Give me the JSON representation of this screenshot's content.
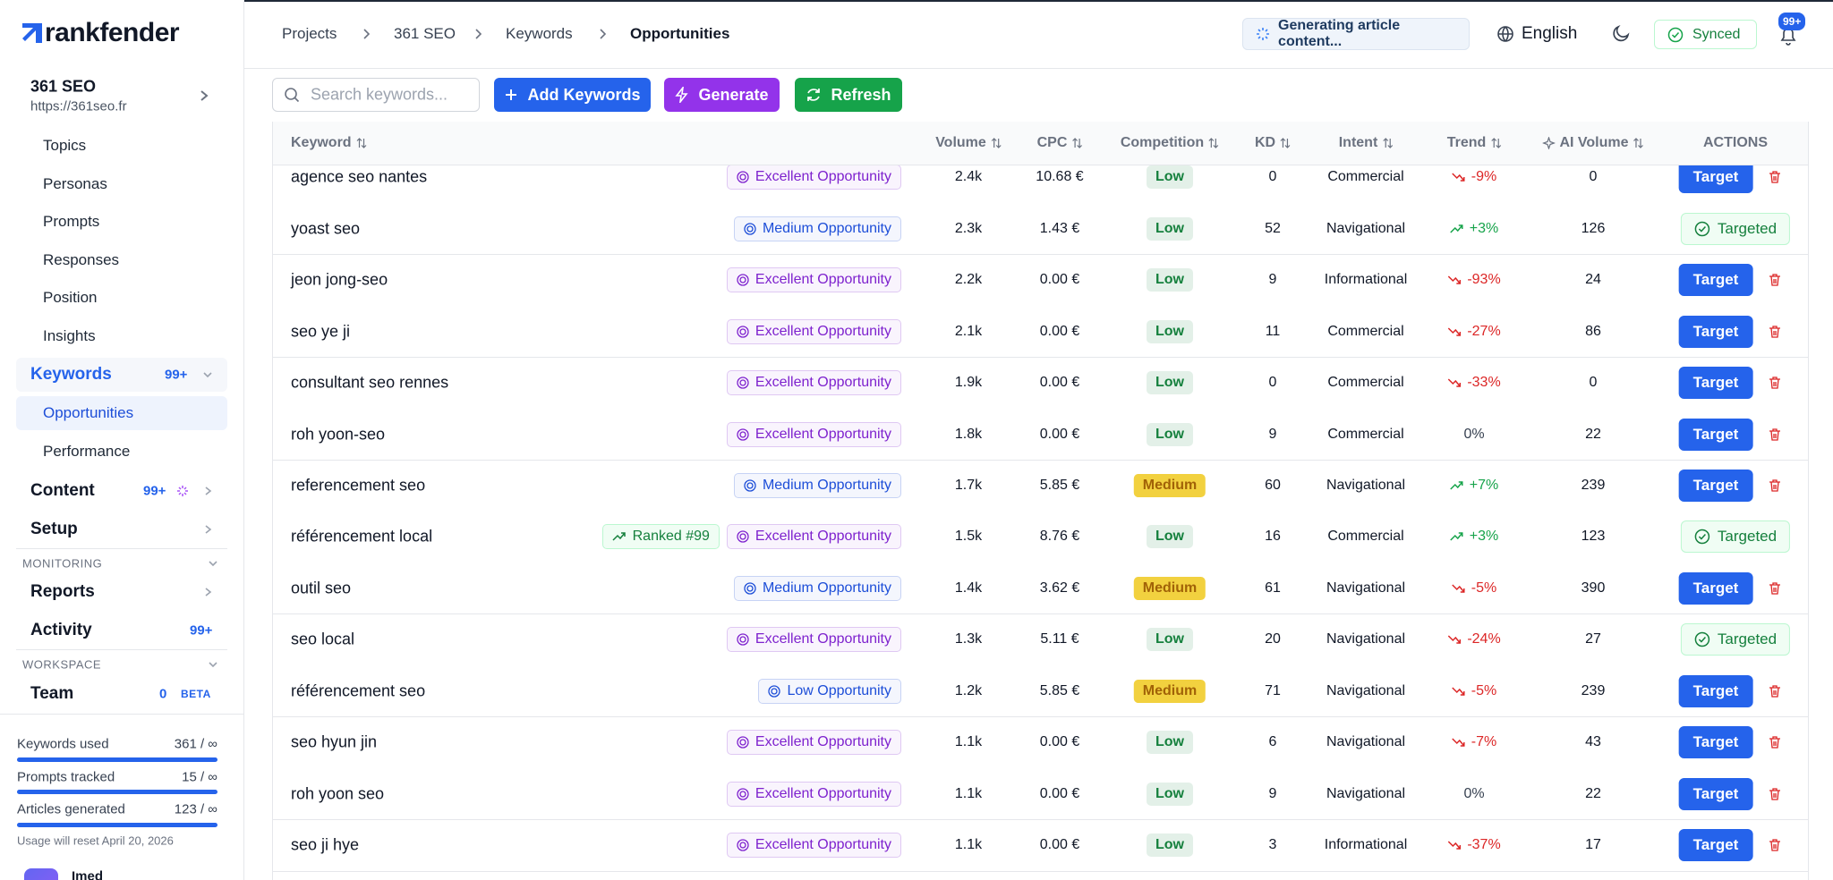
{
  "brand": "rankfender",
  "breadcrumb": [
    "Projects",
    "361 SEO",
    "Keywords",
    "Opportunities"
  ],
  "status": "Generating article content...",
  "language": "English",
  "synced": "Synced",
  "notifications": "99+",
  "project": {
    "name": "361 SEO",
    "url": "https://361seo.fr"
  },
  "sidebar": {
    "topics": "Topics",
    "personas": "Personas",
    "prompts": "Prompts",
    "responses": "Responses",
    "position": "Position",
    "insights": "Insights",
    "keywords": {
      "label": "Keywords",
      "badge": "99+"
    },
    "opportunities": "Opportunities",
    "performance": "Performance",
    "content": {
      "label": "Content",
      "badge": "99+"
    },
    "setup": "Setup",
    "monitoring": "MONITORING",
    "reports": "Reports",
    "activity": {
      "label": "Activity",
      "badge": "99+"
    },
    "workspace": "WORKSPACE",
    "team": {
      "label": "Team",
      "badge": "0",
      "tag": "BETA"
    }
  },
  "usage": [
    {
      "label": "Keywords used",
      "value": "361 / ∞"
    },
    {
      "label": "Prompts tracked",
      "value": "15 / ∞"
    },
    {
      "label": "Articles generated",
      "value": "123 / ∞"
    }
  ],
  "reset_note": "Usage will reset April 20, 2026",
  "user": "Imed",
  "toolbar": {
    "search": "Search keywords...",
    "add": "Add Keywords",
    "generate": "Generate",
    "refresh": "Refresh"
  },
  "table": {
    "columns": [
      "Keyword",
      "Volume",
      "CPC",
      "Competition",
      "KD",
      "Intent",
      "Trend",
      "AI Volume",
      "ACTIONS"
    ],
    "rows": [
      {
        "keyword": "agence seo nantes",
        "opportunity": {
          "label": "Excellent Opportunity",
          "color": "#7e22ce"
        },
        "volume": "2.4k",
        "cpc": "10.68 €",
        "competition": {
          "label": "Low",
          "color": "#15803d"
        },
        "kd": "0",
        "intent": "Commercial",
        "trend": {
          "label": "-9%",
          "color": "#dc2626"
        },
        "ai_volume": "0",
        "action": {
          "label": "Target",
          "color": "#2563eb"
        }
      },
      {
        "keyword": "yoast seo",
        "opportunity": {
          "label": "Medium Opportunity",
          "color": "#1d4ed8"
        },
        "volume": "2.3k",
        "cpc": "1.43 €",
        "competition": {
          "label": "Low",
          "color": "#15803d"
        },
        "kd": "52",
        "intent": "Navigational",
        "trend": {
          "label": "+3%",
          "color": "#16a34a"
        },
        "ai_volume": "126",
        "action": {
          "label": "Targeted",
          "color": "#15803d"
        }
      },
      {
        "keyword": "jeon jong-seo",
        "opportunity": {
          "label": "Excellent Opportunity",
          "color": "#7e22ce"
        },
        "volume": "2.2k",
        "cpc": "0.00 €",
        "competition": {
          "label": "Low",
          "color": "#15803d"
        },
        "kd": "9",
        "intent": "Informational",
        "trend": {
          "label": "-93%",
          "color": "#dc2626"
        },
        "ai_volume": "24",
        "action": {
          "label": "Target",
          "color": "#2563eb"
        }
      },
      {
        "keyword": "seo ye ji",
        "opportunity": {
          "label": "Excellent Opportunity",
          "color": "#7e22ce"
        },
        "volume": "2.1k",
        "cpc": "0.00 €",
        "competition": {
          "label": "Low",
          "color": "#15803d"
        },
        "kd": "11",
        "intent": "Commercial",
        "trend": {
          "label": "-27%",
          "color": "#dc2626"
        },
        "ai_volume": "86",
        "action": {
          "label": "Target",
          "color": "#2563eb"
        }
      },
      {
        "keyword": "consultant seo rennes",
        "opportunity": {
          "label": "Excellent Opportunity",
          "color": "#7e22ce"
        },
        "volume": "1.9k",
        "cpc": "0.00 €",
        "competition": {
          "label": "Low",
          "color": "#15803d"
        },
        "kd": "0",
        "intent": "Commercial",
        "trend": {
          "label": "-33%",
          "color": "#dc2626"
        },
        "ai_volume": "0",
        "action": {
          "label": "Target",
          "color": "#2563eb"
        }
      },
      {
        "keyword": "roh yoon-seo",
        "opportunity": {
          "label": "Excellent Opportunity",
          "color": "#7e22ce"
        },
        "volume": "1.8k",
        "cpc": "0.00 €",
        "competition": {
          "label": "Low",
          "color": "#15803d"
        },
        "kd": "9",
        "intent": "Commercial",
        "trend": {
          "label": "0%",
          "color": "#374151"
        },
        "ai_volume": "22",
        "action": {
          "label": "Target",
          "color": "#2563eb"
        }
      },
      {
        "keyword": "referencement seo",
        "opportunity": {
          "label": "Medium Opportunity",
          "color": "#1d4ed8"
        },
        "volume": "1.7k",
        "cpc": "5.85 €",
        "competition": {
          "label": "Medium",
          "color": "#a16207"
        },
        "kd": "60",
        "intent": "Navigational",
        "trend": {
          "label": "+7%",
          "color": "#16a34a"
        },
        "ai_volume": "239",
        "action": {
          "label": "Target",
          "color": "#2563eb"
        }
      },
      {
        "keyword": "référencement local",
        "rank": "Ranked #99",
        "opportunity": {
          "label": "Excellent Opportunity",
          "color": "#7e22ce"
        },
        "volume": "1.5k",
        "cpc": "8.76 €",
        "competition": {
          "label": "Low",
          "color": "#15803d"
        },
        "kd": "16",
        "intent": "Commercial",
        "trend": {
          "label": "+3%",
          "color": "#16a34a"
        },
        "ai_volume": "123",
        "action": {
          "label": "Targeted",
          "color": "#15803d"
        }
      },
      {
        "keyword": "outil seo",
        "opportunity": {
          "label": "Medium Opportunity",
          "color": "#1d4ed8"
        },
        "volume": "1.4k",
        "cpc": "3.62 €",
        "competition": {
          "label": "Medium",
          "color": "#a16207"
        },
        "kd": "61",
        "intent": "Navigational",
        "trend": {
          "label": "-5%",
          "color": "#dc2626"
        },
        "ai_volume": "390",
        "action": {
          "label": "Target",
          "color": "#2563eb"
        }
      },
      {
        "keyword": "seo local",
        "opportunity": {
          "label": "Excellent Opportunity",
          "color": "#7e22ce"
        },
        "volume": "1.3k",
        "cpc": "5.11 €",
        "competition": {
          "label": "Low",
          "color": "#15803d"
        },
        "kd": "20",
        "intent": "Navigational",
        "trend": {
          "label": "-24%",
          "color": "#dc2626"
        },
        "ai_volume": "27",
        "action": {
          "label": "Targeted",
          "color": "#15803d"
        }
      },
      {
        "keyword": "référencement seo",
        "opportunity": {
          "label": "Low Opportunity",
          "color": "#1d4ed8"
        },
        "volume": "1.2k",
        "cpc": "5.85 €",
        "competition": {
          "label": "Medium",
          "color": "#a16207"
        },
        "kd": "71",
        "intent": "Navigational",
        "trend": {
          "label": "-5%",
          "color": "#dc2626"
        },
        "ai_volume": "239",
        "action": {
          "label": "Target",
          "color": "#2563eb"
        }
      },
      {
        "keyword": "seo hyun jin",
        "opportunity": {
          "label": "Excellent Opportunity",
          "color": "#7e22ce"
        },
        "volume": "1.1k",
        "cpc": "0.00 €",
        "competition": {
          "label": "Low",
          "color": "#15803d"
        },
        "kd": "6",
        "intent": "Navigational",
        "trend": {
          "label": "-7%",
          "color": "#dc2626"
        },
        "ai_volume": "43",
        "action": {
          "label": "Target",
          "color": "#2563eb"
        }
      },
      {
        "keyword": "roh yoon seo",
        "opportunity": {
          "label": "Excellent Opportunity",
          "color": "#7e22ce"
        },
        "volume": "1.1k",
        "cpc": "0.00 €",
        "competition": {
          "label": "Low",
          "color": "#15803d"
        },
        "kd": "9",
        "intent": "Navigational",
        "trend": {
          "label": "0%",
          "color": "#374151"
        },
        "ai_volume": "22",
        "action": {
          "label": "Target",
          "color": "#2563eb"
        }
      },
      {
        "keyword": "seo ji hye",
        "opportunity": {
          "label": "Excellent Opportunity",
          "color": "#7e22ce"
        },
        "volume": "1.1k",
        "cpc": "0.00 €",
        "competition": {
          "label": "Low",
          "color": "#15803d"
        },
        "kd": "3",
        "intent": "Informational",
        "trend": {
          "label": "-37%",
          "color": "#dc2626"
        },
        "ai_volume": "17",
        "action": {
          "label": "Target",
          "color": "#2563eb"
        }
      }
    ]
  }
}
